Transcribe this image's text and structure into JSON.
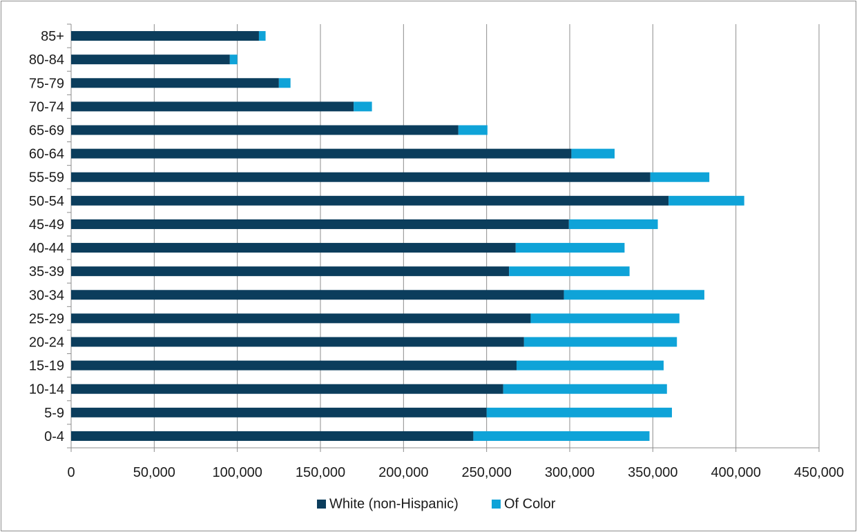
{
  "chart_data": {
    "type": "bar",
    "orientation": "horizontal",
    "stacked": true,
    "categories": [
      "0-4",
      "5-9",
      "10-14",
      "15-19",
      "20-24",
      "25-29",
      "30-34",
      "35-39",
      "40-44",
      "45-49",
      "50-54",
      "55-59",
      "60-64",
      "65-69",
      "70-74",
      "75-79",
      "80-84",
      "85+"
    ],
    "series": [
      {
        "name": "White (non-Hispanic)",
        "color": "#0b3d5c",
        "values": [
          242000,
          250000,
          260000,
          268000,
          272500,
          276500,
          296500,
          263500,
          267500,
          299500,
          359500,
          348500,
          301000,
          233000,
          170000,
          125000,
          95500,
          113000
        ]
      },
      {
        "name": "Of Color",
        "color": "#0fa3d8",
        "values": [
          106000,
          111500,
          98500,
          88500,
          92000,
          89500,
          84500,
          72500,
          65500,
          53500,
          45500,
          35500,
          26000,
          17500,
          11000,
          7000,
          4500,
          4000
        ]
      }
    ],
    "x_ticks": [
      "0",
      "50,000",
      "100,000",
      "150,000",
      "200,000",
      "250,000",
      "300,000",
      "350,000",
      "400,000",
      "450,000"
    ],
    "xlim": [
      0,
      450000
    ],
    "grid": "vertical",
    "legend": "bottom"
  }
}
